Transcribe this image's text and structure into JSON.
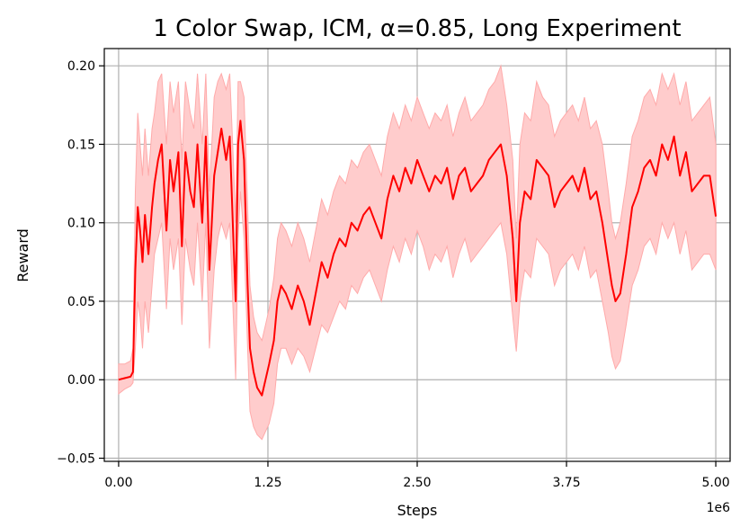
{
  "chart_data": {
    "type": "line",
    "title": "1 Color Swap, ICM, α=0.85, Long Experiment",
    "xlabel": "Steps",
    "ylabel": "Reward",
    "x_offset_label": "1e6",
    "xlim": [
      -0.12,
      5.12
    ],
    "ylim": [
      -0.052,
      0.211
    ],
    "x_ticks": [
      0.0,
      1.25,
      2.5,
      3.75,
      5.0
    ],
    "x_tick_labels": [
      "0.00",
      "1.25",
      "2.50",
      "3.75",
      "5.00"
    ],
    "y_ticks": [
      -0.05,
      0.0,
      0.05,
      0.1,
      0.15,
      0.2
    ],
    "y_tick_labels": [
      "−0.05",
      "0.00",
      "0.05",
      "0.10",
      "0.15",
      "0.20"
    ],
    "grid": true,
    "legend": "none",
    "colors": {
      "mean_line": "#ff0000",
      "band_fill": "#ffcccc",
      "band_edge": "#ffaaaa",
      "grid": "#b0b0b0"
    },
    "series": [
      {
        "x": [
          0.0,
          0.05,
          0.1,
          0.12,
          0.14,
          0.16,
          0.18,
          0.2,
          0.22,
          0.25,
          0.28,
          0.3,
          0.33,
          0.36,
          0.4,
          0.43,
          0.46,
          0.5,
          0.53,
          0.56,
          0.6,
          0.63,
          0.66,
          0.7,
          0.73,
          0.76,
          0.8,
          0.83,
          0.86,
          0.9,
          0.93,
          0.96,
          0.98,
          1.0,
          1.02,
          1.05,
          1.08,
          1.1,
          1.13,
          1.16,
          1.2,
          1.23,
          1.26,
          1.3,
          1.33,
          1.36,
          1.4,
          1.45,
          1.5,
          1.55,
          1.6,
          1.65,
          1.7,
          1.75,
          1.8,
          1.85,
          1.9,
          1.95,
          2.0,
          2.05,
          2.1,
          2.15,
          2.2,
          2.25,
          2.3,
          2.35,
          2.4,
          2.45,
          2.5,
          2.55,
          2.6,
          2.65,
          2.7,
          2.75,
          2.8,
          2.85,
          2.9,
          2.95,
          3.0,
          3.05,
          3.1,
          3.15,
          3.2,
          3.25,
          3.3,
          3.33,
          3.36,
          3.4,
          3.45,
          3.5,
          3.55,
          3.6,
          3.65,
          3.7,
          3.75,
          3.8,
          3.85,
          3.9,
          3.95,
          4.0,
          4.05,
          4.1,
          4.13,
          4.16,
          4.2,
          4.25,
          4.3,
          4.35,
          4.4,
          4.45,
          4.5,
          4.55,
          4.6,
          4.65,
          4.7,
          4.75,
          4.8,
          4.85,
          4.9,
          4.95,
          5.0
        ],
        "mean": [
          0.0,
          0.001,
          0.002,
          0.005,
          0.07,
          0.11,
          0.095,
          0.075,
          0.105,
          0.08,
          0.11,
          0.125,
          0.14,
          0.15,
          0.095,
          0.14,
          0.12,
          0.145,
          0.085,
          0.145,
          0.12,
          0.11,
          0.15,
          0.1,
          0.155,
          0.07,
          0.13,
          0.145,
          0.16,
          0.14,
          0.155,
          0.09,
          0.05,
          0.15,
          0.165,
          0.14,
          0.06,
          0.02,
          0.005,
          -0.005,
          -0.01,
          0.0,
          0.01,
          0.025,
          0.05,
          0.06,
          0.055,
          0.045,
          0.06,
          0.05,
          0.035,
          0.055,
          0.075,
          0.065,
          0.08,
          0.09,
          0.085,
          0.1,
          0.095,
          0.105,
          0.11,
          0.1,
          0.09,
          0.115,
          0.13,
          0.12,
          0.135,
          0.125,
          0.14,
          0.13,
          0.12,
          0.13,
          0.125,
          0.135,
          0.115,
          0.13,
          0.135,
          0.12,
          0.125,
          0.13,
          0.14,
          0.145,
          0.15,
          0.13,
          0.09,
          0.05,
          0.1,
          0.12,
          0.115,
          0.14,
          0.135,
          0.13,
          0.11,
          0.12,
          0.125,
          0.13,
          0.12,
          0.135,
          0.115,
          0.12,
          0.1,
          0.075,
          0.06,
          0.05,
          0.055,
          0.08,
          0.11,
          0.12,
          0.135,
          0.14,
          0.13,
          0.15,
          0.14,
          0.155,
          0.13,
          0.145,
          0.12,
          0.125,
          0.13,
          0.13,
          0.104
        ],
        "lower": [
          -0.009,
          -0.006,
          -0.004,
          -0.002,
          0.02,
          0.05,
          0.04,
          0.02,
          0.05,
          0.03,
          0.06,
          0.08,
          0.09,
          0.1,
          0.045,
          0.09,
          0.07,
          0.09,
          0.035,
          0.09,
          0.07,
          0.06,
          0.1,
          0.05,
          0.1,
          0.02,
          0.07,
          0.09,
          0.1,
          0.09,
          0.1,
          0.04,
          0.0,
          0.09,
          0.12,
          0.09,
          0.02,
          -0.02,
          -0.03,
          -0.035,
          -0.038,
          -0.033,
          -0.028,
          -0.015,
          0.01,
          0.02,
          0.02,
          0.01,
          0.02,
          0.015,
          0.005,
          0.02,
          0.035,
          0.03,
          0.04,
          0.05,
          0.045,
          0.06,
          0.055,
          0.065,
          0.07,
          0.06,
          0.05,
          0.07,
          0.085,
          0.075,
          0.09,
          0.08,
          0.095,
          0.085,
          0.07,
          0.08,
          0.075,
          0.085,
          0.065,
          0.08,
          0.09,
          0.075,
          0.08,
          0.085,
          0.09,
          0.095,
          0.1,
          0.08,
          0.04,
          0.018,
          0.05,
          0.07,
          0.065,
          0.09,
          0.085,
          0.08,
          0.06,
          0.07,
          0.075,
          0.08,
          0.07,
          0.085,
          0.065,
          0.07,
          0.05,
          0.03,
          0.015,
          0.007,
          0.012,
          0.035,
          0.06,
          0.07,
          0.085,
          0.09,
          0.08,
          0.1,
          0.09,
          0.1,
          0.08,
          0.095,
          0.07,
          0.075,
          0.08,
          0.08,
          0.07
        ],
        "upper": [
          0.01,
          0.01,
          0.012,
          0.02,
          0.12,
          0.17,
          0.15,
          0.13,
          0.16,
          0.13,
          0.16,
          0.17,
          0.19,
          0.195,
          0.15,
          0.19,
          0.17,
          0.19,
          0.14,
          0.19,
          0.17,
          0.16,
          0.195,
          0.15,
          0.195,
          0.12,
          0.18,
          0.19,
          0.195,
          0.185,
          0.195,
          0.14,
          0.1,
          0.19,
          0.19,
          0.18,
          0.11,
          0.06,
          0.04,
          0.03,
          0.025,
          0.035,
          0.045,
          0.065,
          0.09,
          0.1,
          0.095,
          0.085,
          0.1,
          0.09,
          0.075,
          0.095,
          0.115,
          0.105,
          0.12,
          0.13,
          0.125,
          0.14,
          0.135,
          0.145,
          0.15,
          0.14,
          0.13,
          0.155,
          0.17,
          0.16,
          0.175,
          0.165,
          0.18,
          0.17,
          0.16,
          0.17,
          0.165,
          0.175,
          0.155,
          0.17,
          0.18,
          0.165,
          0.17,
          0.175,
          0.185,
          0.19,
          0.2,
          0.175,
          0.14,
          0.09,
          0.15,
          0.17,
          0.165,
          0.19,
          0.18,
          0.175,
          0.155,
          0.165,
          0.17,
          0.175,
          0.165,
          0.18,
          0.16,
          0.165,
          0.15,
          0.12,
          0.1,
          0.09,
          0.1,
          0.125,
          0.155,
          0.165,
          0.18,
          0.185,
          0.175,
          0.195,
          0.185,
          0.195,
          0.175,
          0.19,
          0.165,
          0.17,
          0.175,
          0.18,
          0.15
        ]
      }
    ]
  }
}
